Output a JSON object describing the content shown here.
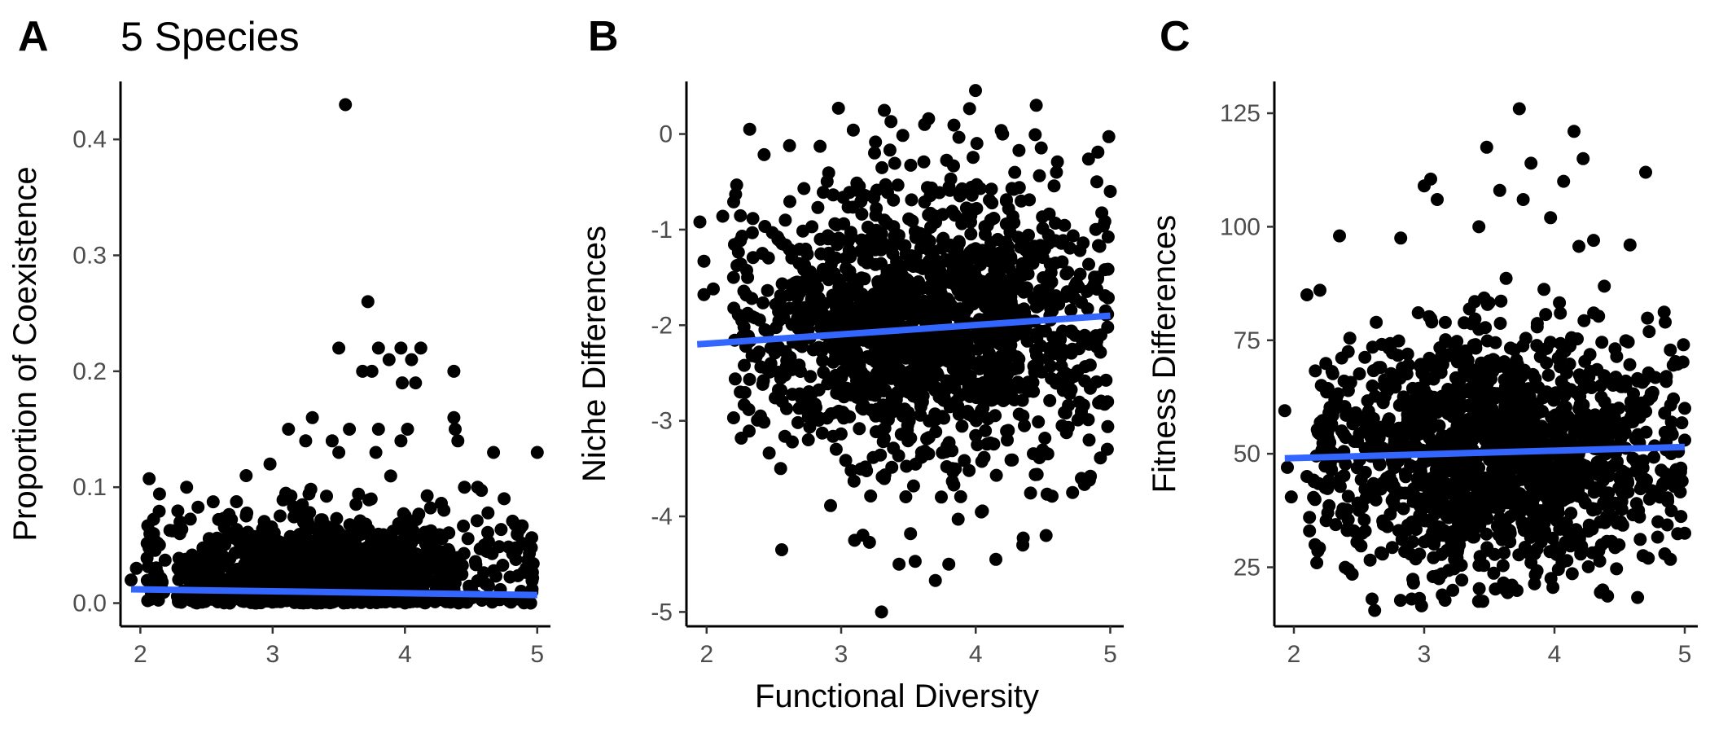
{
  "chart_data": [
    {
      "type": "scatter",
      "panel_label": "A",
      "title": "5 Species",
      "xlabel": "",
      "ylabel": "Proportion of Coexistence",
      "xlim": [
        1.85,
        5.1
      ],
      "ylim": [
        -0.02,
        0.45
      ],
      "xticks": [
        2,
        3,
        4,
        5
      ],
      "yticks": [
        0.0,
        0.1,
        0.2,
        0.3,
        0.4
      ],
      "ytick_labels": [
        "0.0",
        "0.1",
        "0.2",
        "0.3",
        "0.4"
      ],
      "cloud": {
        "x_min": 2.05,
        "x_max": 4.97,
        "x_center": 3.5,
        "y_center": 0.025,
        "y_spread": 0.025,
        "count": 1100,
        "clamp_low": 0.0
      },
      "points": [
        {
          "x": 3.55,
          "y": 0.43
        },
        {
          "x": 3.72,
          "y": 0.26
        },
        {
          "x": 3.5,
          "y": 0.22
        },
        {
          "x": 3.8,
          "y": 0.22
        },
        {
          "x": 3.97,
          "y": 0.22
        },
        {
          "x": 4.12,
          "y": 0.22
        },
        {
          "x": 3.88,
          "y": 0.21
        },
        {
          "x": 4.05,
          "y": 0.21
        },
        {
          "x": 3.68,
          "y": 0.2
        },
        {
          "x": 3.75,
          "y": 0.2
        },
        {
          "x": 4.37,
          "y": 0.2
        },
        {
          "x": 3.98,
          "y": 0.19
        },
        {
          "x": 4.08,
          "y": 0.19
        },
        {
          "x": 3.3,
          "y": 0.16
        },
        {
          "x": 4.37,
          "y": 0.16
        },
        {
          "x": 3.12,
          "y": 0.15
        },
        {
          "x": 3.58,
          "y": 0.15
        },
        {
          "x": 3.8,
          "y": 0.15
        },
        {
          "x": 4.02,
          "y": 0.15
        },
        {
          "x": 4.38,
          "y": 0.15
        },
        {
          "x": 3.25,
          "y": 0.14
        },
        {
          "x": 3.45,
          "y": 0.14
        },
        {
          "x": 3.97,
          "y": 0.14
        },
        {
          "x": 4.4,
          "y": 0.14
        },
        {
          "x": 2.98,
          "y": 0.12
        },
        {
          "x": 3.5,
          "y": 0.13
        },
        {
          "x": 3.78,
          "y": 0.13
        },
        {
          "x": 4.67,
          "y": 0.13
        },
        {
          "x": 5.0,
          "y": 0.13
        },
        {
          "x": 2.35,
          "y": 0.1
        },
        {
          "x": 2.8,
          "y": 0.11
        },
        {
          "x": 4.45,
          "y": 0.1
        },
        {
          "x": 4.55,
          "y": 0.1
        },
        {
          "x": 2.1,
          "y": 0.06
        },
        {
          "x": 1.97,
          "y": 0.03
        },
        {
          "x": 1.93,
          "y": 0.02
        },
        {
          "x": 2.3,
          "y": 0.07
        },
        {
          "x": 4.75,
          "y": 0.09
        },
        {
          "x": 4.85,
          "y": 0.06
        },
        {
          "x": 4.92,
          "y": 0.05
        }
      ],
      "fit_line": {
        "x": [
          1.93,
          5.0
        ],
        "y": [
          0.012,
          0.007
        ]
      }
    },
    {
      "type": "scatter",
      "panel_label": "B",
      "title": "",
      "xlabel": "Functional Diversity",
      "ylabel": "Niche Differences",
      "xlim": [
        1.85,
        5.1
      ],
      "ylim": [
        -5.15,
        0.55
      ],
      "xticks": [
        2,
        3,
        4,
        5
      ],
      "yticks": [
        0,
        -1,
        -2,
        -3,
        -4,
        -5
      ],
      "ytick_labels": [
        "0",
        "-1",
        "-2",
        "-3",
        "-4",
        "-5"
      ],
      "cloud": {
        "x_min": 2.2,
        "x_max": 4.99,
        "x_center": 3.6,
        "y_center": -2.0,
        "y_spread": 0.75,
        "count": 1500,
        "clamp_low": -4.8
      },
      "points": [
        {
          "x": 3.3,
          "y": -5.0
        },
        {
          "x": 2.98,
          "y": 0.27
        },
        {
          "x": 4.45,
          "y": 0.3
        },
        {
          "x": 2.32,
          "y": 0.05
        },
        {
          "x": 3.65,
          "y": 0.16
        },
        {
          "x": 3.37,
          "y": 0.13
        },
        {
          "x": 3.62,
          "y": 0.1
        },
        {
          "x": 1.95,
          "y": -0.92
        },
        {
          "x": 1.98,
          "y": -1.33
        },
        {
          "x": 2.05,
          "y": -1.62
        },
        {
          "x": 1.98,
          "y": -1.68
        },
        {
          "x": 2.12,
          "y": -0.86
        },
        {
          "x": 2.2,
          "y": -1.5
        },
        {
          "x": 2.28,
          "y": -2.42
        },
        {
          "x": 2.25,
          "y": -2.7
        },
        {
          "x": 2.4,
          "y": -2.95
        },
        {
          "x": 2.55,
          "y": -3.5
        },
        {
          "x": 3.7,
          "y": -4.67
        },
        {
          "x": 3.55,
          "y": -4.47
        },
        {
          "x": 3.43,
          "y": -4.5
        },
        {
          "x": 4.15,
          "y": -4.45
        },
        {
          "x": 4.35,
          "y": -4.3
        },
        {
          "x": 3.1,
          "y": -4.25
        },
        {
          "x": 3.8,
          "y": -4.5
        },
        {
          "x": 4.72,
          "y": -3.75
        },
        {
          "x": 4.98,
          "y": -2.8
        },
        {
          "x": 5.0,
          "y": -0.6
        },
        {
          "x": 4.9,
          "y": -0.5
        },
        {
          "x": 4.6,
          "y": -0.4
        },
        {
          "x": 4.2,
          "y": 0.0
        }
      ],
      "fit_line": {
        "x": [
          1.93,
          5.0
        ],
        "y": [
          -2.2,
          -1.9
        ]
      }
    },
    {
      "type": "scatter",
      "panel_label": "C",
      "title": "",
      "xlabel": "",
      "ylabel": "Fitness Differences",
      "xlim": [
        1.85,
        5.1
      ],
      "ylim": [
        12.0,
        132.0
      ],
      "xticks": [
        2,
        3,
        4,
        5
      ],
      "yticks": [
        25,
        50,
        75,
        100,
        125
      ],
      "ytick_labels": [
        "25",
        "50",
        "75",
        "100",
        "125"
      ],
      "cloud": {
        "x_min": 2.15,
        "x_max": 4.99,
        "x_center": 3.55,
        "y_center": 50.0,
        "y_spread": 13.0,
        "count": 1500,
        "clamp_low": 17.0
      },
      "points": [
        {
          "x": 3.73,
          "y": 126.0
        },
        {
          "x": 4.15,
          "y": 121.0
        },
        {
          "x": 3.48,
          "y": 117.5
        },
        {
          "x": 4.22,
          "y": 115.0
        },
        {
          "x": 3.82,
          "y": 114.0
        },
        {
          "x": 4.7,
          "y": 112.0
        },
        {
          "x": 4.07,
          "y": 110.0
        },
        {
          "x": 3.0,
          "y": 109.0
        },
        {
          "x": 3.05,
          "y": 110.5
        },
        {
          "x": 3.58,
          "y": 108.0
        },
        {
          "x": 3.76,
          "y": 106.0
        },
        {
          "x": 3.1,
          "y": 106.0
        },
        {
          "x": 3.42,
          "y": 100.0
        },
        {
          "x": 3.97,
          "y": 102.0
        },
        {
          "x": 2.35,
          "y": 98.0
        },
        {
          "x": 2.82,
          "y": 97.5
        },
        {
          "x": 4.3,
          "y": 97.0
        },
        {
          "x": 4.58,
          "y": 96.0
        },
        {
          "x": 2.1,
          "y": 85.0
        },
        {
          "x": 2.2,
          "y": 86.0
        },
        {
          "x": 1.93,
          "y": 59.5
        },
        {
          "x": 1.95,
          "y": 47.0
        },
        {
          "x": 1.98,
          "y": 40.5
        },
        {
          "x": 2.1,
          "y": 45.0
        },
        {
          "x": 2.12,
          "y": 36.0
        },
        {
          "x": 2.12,
          "y": 33.0
        },
        {
          "x": 2.6,
          "y": 18.0
        },
        {
          "x": 2.62,
          "y": 15.5
        },
        {
          "x": 2.98,
          "y": 16.5
        },
        {
          "x": 3.45,
          "y": 17.5
        },
        {
          "x": 4.37,
          "y": 20.0
        },
        {
          "x": 4.72,
          "y": 27.0
        },
        {
          "x": 5.0,
          "y": 32.5
        },
        {
          "x": 4.98,
          "y": 44.0
        },
        {
          "x": 5.0,
          "y": 53.0
        },
        {
          "x": 5.0,
          "y": 60.0
        },
        {
          "x": 4.99,
          "y": 74.0
        },
        {
          "x": 4.85,
          "y": 79.0
        }
      ],
      "fit_line": {
        "x": [
          1.93,
          5.0
        ],
        "y": [
          49.0,
          51.5
        ]
      }
    }
  ]
}
